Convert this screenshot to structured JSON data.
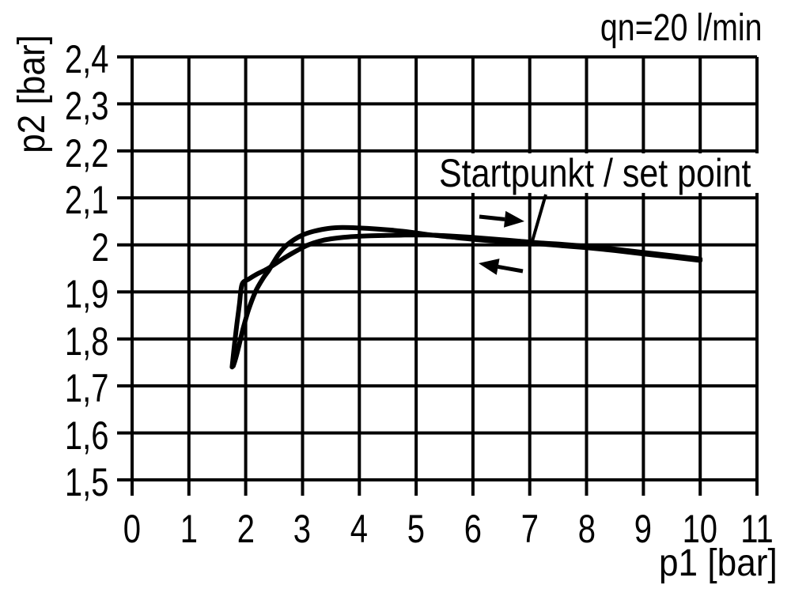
{
  "page": {
    "background": "#ffffff",
    "foreground": "#000000"
  },
  "chart_data": {
    "type": "line",
    "title": "",
    "xlabel": "p1 [bar]",
    "ylabel": "p2 [bar]",
    "x_range": [
      0,
      11
    ],
    "y_range": [
      1.5,
      2.4
    ],
    "grid": true,
    "line_color": "#000000",
    "grid_color": "#000000",
    "x_ticks": [
      {
        "label": "0",
        "value": 0
      },
      {
        "label": "1",
        "value": 1
      },
      {
        "label": "2",
        "value": 2
      },
      {
        "label": "3",
        "value": 3
      },
      {
        "label": "4",
        "value": 4
      },
      {
        "label": "5",
        "value": 5
      },
      {
        "label": "6",
        "value": 6
      },
      {
        "label": "7",
        "value": 7
      },
      {
        "label": "8",
        "value": 8
      },
      {
        "label": "9",
        "value": 9
      },
      {
        "label": "10",
        "value": 10
      },
      {
        "label": "11",
        "value": 11
      }
    ],
    "y_ticks": [
      {
        "label": "2,4",
        "value": 2.4
      },
      {
        "label": "2,3",
        "value": 2.3
      },
      {
        "label": "2,2",
        "value": 2.2
      },
      {
        "label": "2,1",
        "value": 2.1
      },
      {
        "label": "2",
        "value": 2.0
      },
      {
        "label": "1,9",
        "value": 1.9
      },
      {
        "label": "1,8",
        "value": 1.8
      },
      {
        "label": "1,7",
        "value": 1.7
      },
      {
        "label": "1,6",
        "value": 1.6
      },
      {
        "label": "1,5",
        "value": 1.5
      }
    ],
    "series": [
      {
        "name": "forward branch (arrow right)",
        "x": [
          1.76,
          1.8,
          1.845,
          1.89,
          1.935,
          2.05,
          2.2,
          2.35,
          2.5,
          2.65,
          2.8,
          2.95,
          3.1,
          3.3,
          3.5,
          3.8,
          4.1,
          4.4,
          4.8,
          5.2,
          5.6,
          6.0,
          6.4,
          6.8,
          7.2,
          7.6,
          8.0,
          8.5,
          9.0,
          9.5,
          10.0
        ],
        "y": [
          1.74,
          1.786,
          1.832,
          1.874,
          1.916,
          1.927,
          1.938,
          1.947,
          1.958,
          1.97,
          1.981,
          1.991,
          2.0,
          2.008,
          2.013,
          2.017,
          2.019,
          2.02,
          2.021,
          2.021,
          2.019,
          2.016,
          2.012,
          2.008,
          2.004,
          2.001,
          1.997,
          1.991,
          1.984,
          1.977,
          1.97
        ]
      },
      {
        "name": "return branch (arrow left)",
        "x": [
          10.0,
          9.5,
          9.0,
          8.5,
          8.0,
          7.6,
          7.2,
          6.8,
          6.4,
          6.0,
          5.6,
          5.2,
          4.9,
          4.6,
          4.3,
          4.0,
          3.7,
          3.45,
          3.2,
          3.0,
          2.85,
          2.7,
          2.58,
          2.48,
          2.4,
          2.3,
          2.17,
          2.05,
          1.95,
          1.88,
          1.82,
          1.78
        ],
        "y": [
          1.967,
          1.974,
          1.981,
          1.988,
          1.994,
          1.998,
          2.002,
          2.005,
          2.008,
          2.012,
          2.017,
          2.022,
          2.027,
          2.031,
          2.034,
          2.036,
          2.037,
          2.035,
          2.029,
          2.021,
          2.011,
          1.997,
          1.98,
          1.961,
          1.945,
          1.928,
          1.9,
          1.862,
          1.82,
          1.785,
          1.757,
          1.742
        ]
      }
    ],
    "annotations": {
      "flow_label": "qn=20 l/min",
      "set_point_label": "Startpunkt / set point",
      "set_point_leader_target": {
        "p1": 7.05,
        "p2": 2.01
      },
      "arrows": [
        {
          "direction": "right"
        },
        {
          "direction": "left"
        }
      ]
    }
  }
}
